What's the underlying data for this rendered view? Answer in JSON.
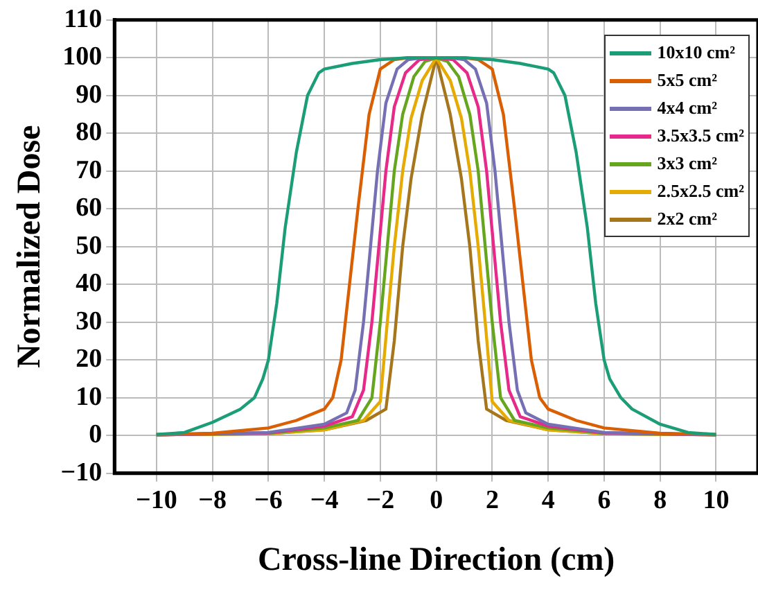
{
  "chart_data": {
    "type": "line",
    "xlabel": "Cross-line Direction (cm)",
    "ylabel": "Normalized Dose",
    "xlim": [
      -11.5,
      11.5
    ],
    "ylim": [
      -10,
      110
    ],
    "xticks": [
      {
        "value": -10,
        "label": "−10"
      },
      {
        "value": -8,
        "label": "−8"
      },
      {
        "value": -6,
        "label": "−6"
      },
      {
        "value": -4,
        "label": "−4"
      },
      {
        "value": -2,
        "label": "−2"
      },
      0,
      2,
      4,
      6,
      8,
      10
    ],
    "yticks": [
      {
        "value": -10,
        "label": "−10"
      },
      0,
      10,
      20,
      30,
      40,
      50,
      60,
      70,
      80,
      90,
      100,
      110
    ],
    "grid": true,
    "legend": "top right",
    "marker": "none",
    "line_style": "solid",
    "series": [
      {
        "name": "10x10 cm²",
        "color": "#1b9e77",
        "x": [
          -10,
          -9,
          -8,
          -7,
          -6.5,
          -6.2,
          -6,
          -5.7,
          -5.4,
          -5,
          -4.6,
          -4.2,
          -4,
          -3,
          -2,
          -1,
          0,
          1,
          2,
          3,
          4,
          4.2,
          4.6,
          5,
          5.4,
          5.7,
          6,
          6.2,
          6.6,
          7,
          8,
          9,
          10
        ],
        "values": [
          0.3,
          0.8,
          3.5,
          7,
          10,
          15,
          20,
          35,
          55,
          75,
          90,
          96,
          97,
          98.5,
          99.5,
          100,
          100,
          100,
          99.5,
          98.5,
          97,
          96,
          90,
          75,
          55,
          35,
          20,
          15,
          10,
          7,
          3,
          0.8,
          0.3
        ]
      },
      {
        "name": "5x5 cm²",
        "color": "#d95f02",
        "x": [
          -10,
          -8,
          -6,
          -5,
          -4,
          -3.7,
          -3.4,
          -3.1,
          -2.8,
          -2.4,
          -2,
          -1.5,
          -1,
          0,
          1,
          1.5,
          2,
          2.4,
          2.8,
          3.1,
          3.4,
          3.7,
          4,
          5,
          6,
          8,
          10
        ],
        "values": [
          0.3,
          0.6,
          2,
          4,
          7,
          10,
          20,
          40,
          60,
          85,
          97,
          99.5,
          100,
          100,
          100,
          99.5,
          97,
          85,
          60,
          40,
          20,
          10,
          7,
          4,
          2,
          0.6,
          0.3
        ]
      },
      {
        "name": "4x4 cm²",
        "color": "#7570b3",
        "x": [
          -10,
          -6,
          -4,
          -3.2,
          -2.9,
          -2.6,
          -2.35,
          -2.1,
          -1.8,
          -1.4,
          -1,
          -0.5,
          0.5,
          1,
          1.4,
          1.8,
          2.1,
          2.35,
          2.6,
          2.9,
          3.2,
          4,
          6,
          10
        ],
        "values": [
          0.2,
          0.8,
          3,
          6,
          12,
          30,
          50,
          70,
          88,
          97,
          99.5,
          100,
          100,
          99.5,
          97,
          88,
          70,
          50,
          30,
          12,
          6,
          3,
          0.8,
          0.2
        ]
      },
      {
        "name": "3.5x3.5 cm²",
        "color": "#e7298a",
        "x": [
          -10,
          -6,
          -4,
          -3,
          -2.6,
          -2.3,
          -2.05,
          -1.8,
          -1.5,
          -1.1,
          -0.6,
          0,
          0.6,
          1.1,
          1.5,
          1.8,
          2.05,
          2.3,
          2.6,
          3,
          4,
          6,
          10
        ],
        "values": [
          0.2,
          0.7,
          2.5,
          5,
          12,
          30,
          50,
          70,
          87,
          96,
          99.5,
          100,
          99.5,
          96,
          87,
          70,
          50,
          30,
          12,
          5,
          2.5,
          0.7,
          0.2
        ]
      },
      {
        "name": "3x3 cm²",
        "color": "#66a61e",
        "x": [
          -10,
          -6,
          -4,
          -2.8,
          -2.3,
          -2,
          -1.75,
          -1.5,
          -1.2,
          -0.8,
          -0.4,
          0,
          0.4,
          0.8,
          1.2,
          1.5,
          1.75,
          2,
          2.3,
          2.8,
          4,
          6,
          10
        ],
        "values": [
          0.2,
          0.6,
          2,
          4,
          10,
          30,
          50,
          70,
          85,
          95,
          99,
          100,
          99,
          95,
          85,
          70,
          50,
          30,
          10,
          4,
          2,
          0.6,
          0.2
        ]
      },
      {
        "name": "2.5x2.5 cm²",
        "color": "#e6ab02",
        "x": [
          -10,
          -6,
          -4,
          -2.6,
          -2,
          -1.75,
          -1.5,
          -1.2,
          -0.9,
          -0.5,
          0,
          0.5,
          0.9,
          1.2,
          1.5,
          1.75,
          2,
          2.6,
          4,
          6,
          10
        ],
        "values": [
          0.2,
          0.5,
          1.5,
          4,
          9,
          30,
          50,
          70,
          84,
          94,
          100,
          94,
          84,
          70,
          50,
          30,
          9,
          4,
          1.5,
          0.5,
          0.2
        ]
      },
      {
        "name": "2x2 cm²",
        "color": "#a6761d",
        "x": [
          -10,
          -6,
          -4,
          -2.5,
          -1.8,
          -1.5,
          -1.2,
          -0.9,
          -0.5,
          0,
          0.5,
          0.9,
          1.2,
          1.5,
          1.8,
          2.5,
          4,
          6,
          10
        ],
        "values": [
          0.2,
          0.5,
          1.5,
          4,
          7,
          25,
          50,
          68,
          85,
          100,
          85,
          68,
          50,
          25,
          7,
          4,
          1.5,
          0.5,
          0.2
        ]
      }
    ]
  }
}
